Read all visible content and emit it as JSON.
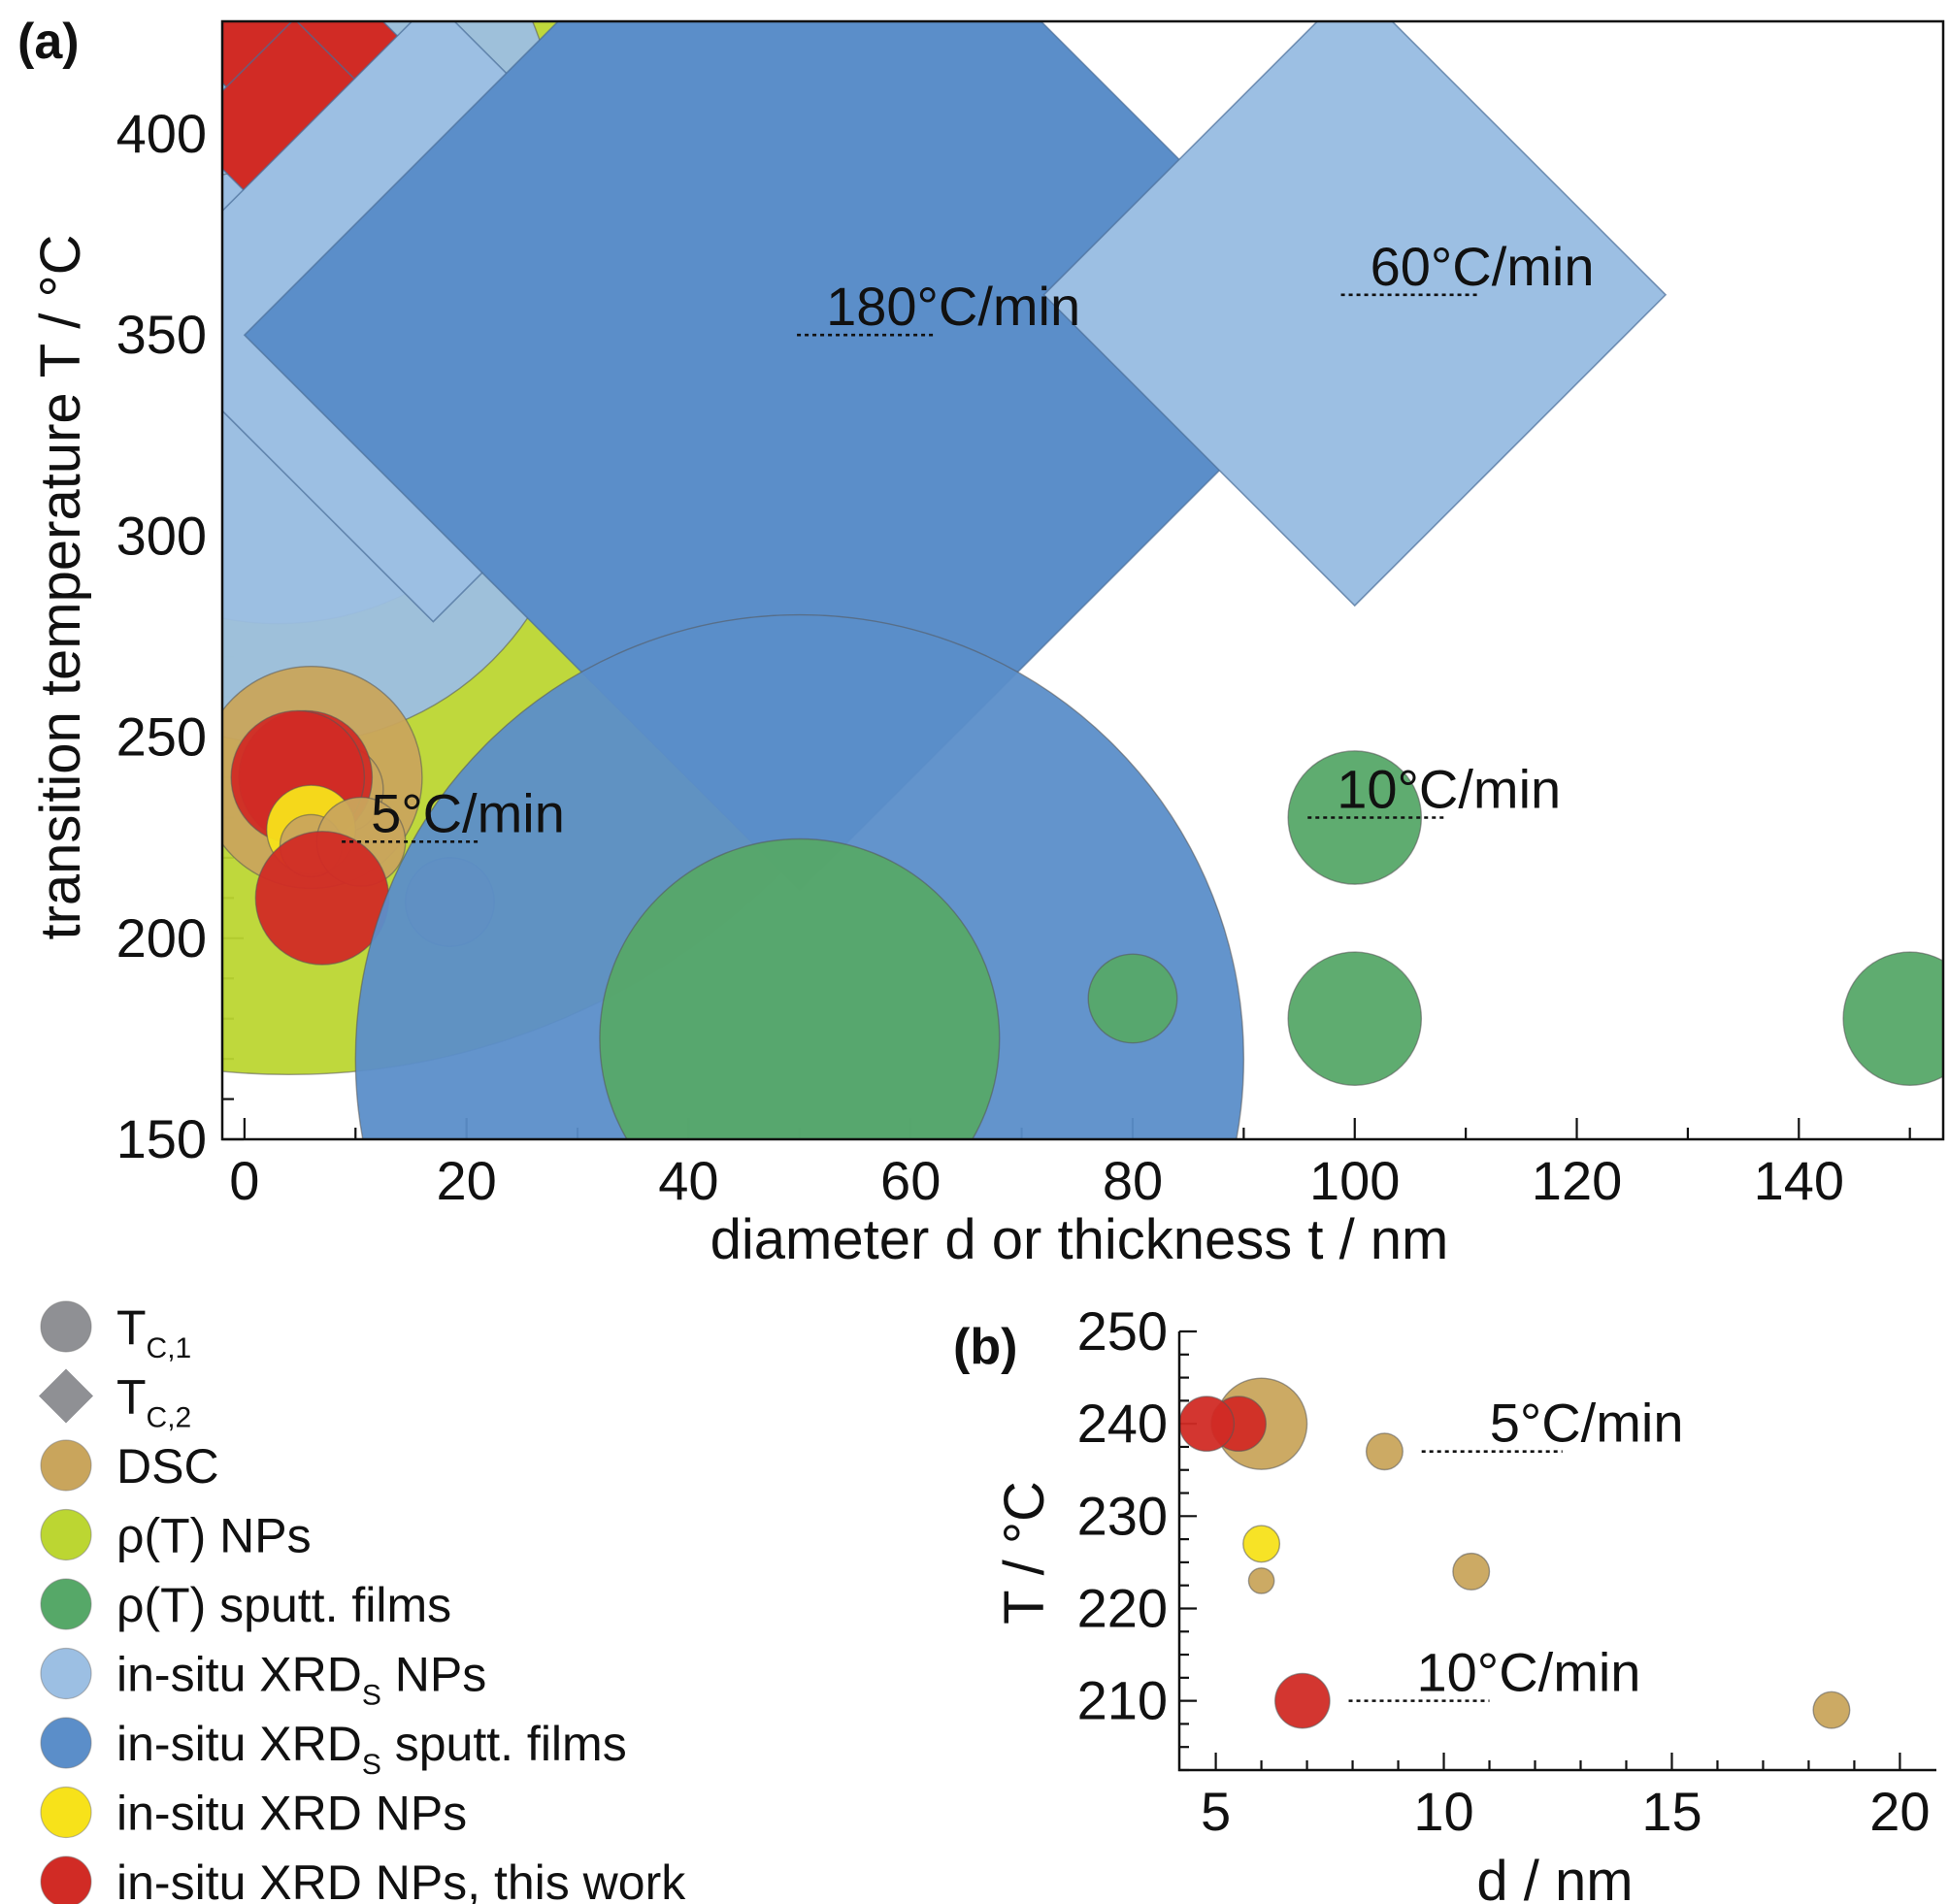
{
  "colors": {
    "DSC": "#c9a55c",
    "rho_NPs": "#bcd632",
    "rho_films": "#56a868",
    "xrds_NPs": "#9cbfe3",
    "xrds_films": "#5b8ec9",
    "xrd_NPs": "#f7e21a",
    "this_work": "#d12b25",
    "legend_shape": "#8f9094"
  },
  "legend": {
    "items": [
      {
        "key": "tc1",
        "shape": "circle",
        "color_key": "legend_shape",
        "main": "T",
        "sub": "C,1",
        "rest": ""
      },
      {
        "key": "tc2",
        "shape": "diamond",
        "color_key": "legend_shape",
        "main": "T",
        "sub": "C,2",
        "rest": ""
      },
      {
        "key": "dsc",
        "shape": "circle",
        "color_key": "DSC",
        "main": "DSC",
        "sub": "",
        "rest": ""
      },
      {
        "key": "rho-nps",
        "shape": "circle",
        "color_key": "rho_NPs",
        "main": "ρ(T) NPs",
        "sub": "",
        "rest": ""
      },
      {
        "key": "rho-films",
        "shape": "circle",
        "color_key": "rho_films",
        "main": "ρ(T) sputt. films",
        "sub": "",
        "rest": ""
      },
      {
        "key": "xrds-nps",
        "shape": "circle",
        "color_key": "xrds_NPs",
        "main": "in-situ XRD",
        "sub": "S",
        "rest": " NPs"
      },
      {
        "key": "xrds-films",
        "shape": "circle",
        "color_key": "xrds_films",
        "main": "in-situ XRD",
        "sub": "S",
        "rest": " sputt. films"
      },
      {
        "key": "xrd-nps",
        "shape": "circle",
        "color_key": "xrd_NPs",
        "main": "in-situ XRD NPs",
        "sub": "",
        "rest": ""
      },
      {
        "key": "this-work",
        "shape": "circle",
        "color_key": "this_work",
        "main": "in-situ XRD NPs, this work",
        "sub": "",
        "rest": ""
      }
    ]
  },
  "chart_data": [
    {
      "panel": "(a)",
      "type": "scatter",
      "xlabel": "diameter d or thickness t / nm",
      "ylabel": "transition temperature T / °C",
      "xlim": [
        -2,
        153
      ],
      "ylim": [
        150,
        428
      ],
      "xticks": [
        0,
        20,
        40,
        60,
        80,
        100,
        120,
        140
      ],
      "yticks": [
        150,
        200,
        250,
        300,
        350,
        400
      ],
      "annotations": [
        {
          "text": "180°C/min",
          "x": 62,
          "y": 350
        },
        {
          "text": "60°C/min",
          "x": 111,
          "y": 360
        },
        {
          "text": "5°C/min",
          "x": 21,
          "y": 224
        },
        {
          "text": "10°C/min",
          "x": 108,
          "y": 230
        }
      ],
      "points": [
        {
          "x": 4,
          "y": 340,
          "r": 63,
          "shape": "circle",
          "color_key": "rho_NPs"
        },
        {
          "x": 2,
          "y": 400,
          "r": 26,
          "shape": "circle",
          "color_key": "xrds_NPs"
        },
        {
          "x": 3,
          "y": 350,
          "r": 26,
          "shape": "circle",
          "color_key": "xrds_NPs"
        },
        {
          "x": 4,
          "y": 320,
          "r": 26,
          "shape": "circle",
          "color_key": "xrds_NPs"
        },
        {
          "x": 5,
          "y": 421,
          "r": 10,
          "shape": "diamond",
          "color_key": "this_work"
        },
        {
          "x": 4.5,
          "y": 401,
          "r": 10,
          "shape": "diamond",
          "color_key": "this_work"
        },
        {
          "x": 17,
          "y": 356,
          "r": 28,
          "shape": "diamond",
          "color_key": "xrds_NPs"
        },
        {
          "x": 50,
          "y": 350,
          "r": 50,
          "shape": "diamond",
          "color_key": "xrds_films"
        },
        {
          "x": 100,
          "y": 360,
          "r": 28,
          "shape": "diamond",
          "color_key": "xrds_NPs"
        },
        {
          "x": 6,
          "y": 240,
          "r": 10,
          "shape": "circle",
          "color_key": "DSC"
        },
        {
          "x": 8.5,
          "y": 237,
          "r": 4,
          "shape": "circle",
          "color_key": "DSC"
        },
        {
          "x": 5.5,
          "y": 240,
          "r": 6,
          "shape": "circle",
          "color_key": "this_work"
        },
        {
          "x": 4.8,
          "y": 240,
          "r": 6,
          "shape": "circle",
          "color_key": "this_work"
        },
        {
          "x": 6,
          "y": 227,
          "r": 4,
          "shape": "circle",
          "color_key": "xrd_NPs"
        },
        {
          "x": 6,
          "y": 223,
          "r": 2.8,
          "shape": "circle",
          "color_key": "DSC"
        },
        {
          "x": 10.5,
          "y": 224,
          "r": 4,
          "shape": "circle",
          "color_key": "DSC"
        },
        {
          "x": 7,
          "y": 210,
          "r": 6,
          "shape": "circle",
          "color_key": "this_work"
        },
        {
          "x": 18.5,
          "y": 209,
          "r": 4,
          "shape": "circle",
          "color_key": "DSC"
        },
        {
          "x": 50,
          "y": 170,
          "r": 40,
          "shape": "circle",
          "color_key": "xrds_films"
        },
        {
          "x": 50,
          "y": 175,
          "r": 18,
          "shape": "circle",
          "color_key": "rho_films"
        },
        {
          "x": 80,
          "y": 185,
          "r": 4,
          "shape": "circle",
          "color_key": "rho_films"
        },
        {
          "x": 100,
          "y": 180,
          "r": 6,
          "shape": "circle",
          "color_key": "rho_films"
        },
        {
          "x": 150,
          "y": 180,
          "r": 6,
          "shape": "circle",
          "color_key": "rho_films"
        },
        {
          "x": 100,
          "y": 230,
          "r": 6,
          "shape": "circle",
          "color_key": "rho_films"
        }
      ]
    },
    {
      "panel": "(b)",
      "type": "scatter",
      "xlabel": "d / nm",
      "ylabel": "T / °C",
      "xlim": [
        4.2,
        20.8
      ],
      "ylim": [
        202.5,
        250
      ],
      "xticks": [
        5,
        10,
        15,
        20
      ],
      "yticks": [
        210,
        220,
        230,
        240,
        250
      ],
      "annotations": [
        {
          "text": "5°C/min",
          "x": 12.6,
          "y": 237
        },
        {
          "text": "10°C/min",
          "x": 11,
          "y": 210
        }
      ],
      "points": [
        {
          "x": 6,
          "y": 240,
          "r": 10,
          "shape": "circle",
          "color_key": "DSC"
        },
        {
          "x": 5.5,
          "y": 240,
          "r": 6,
          "shape": "circle",
          "color_key": "this_work"
        },
        {
          "x": 4.8,
          "y": 240,
          "r": 6,
          "shape": "circle",
          "color_key": "this_work"
        },
        {
          "x": 8.7,
          "y": 237,
          "r": 4,
          "shape": "circle",
          "color_key": "DSC"
        },
        {
          "x": 6,
          "y": 227,
          "r": 4,
          "shape": "circle",
          "color_key": "xrd_NPs"
        },
        {
          "x": 6,
          "y": 223,
          "r": 2.8,
          "shape": "circle",
          "color_key": "DSC"
        },
        {
          "x": 10.6,
          "y": 224,
          "r": 4,
          "shape": "circle",
          "color_key": "DSC"
        },
        {
          "x": 6.9,
          "y": 210,
          "r": 6,
          "shape": "circle",
          "color_key": "this_work"
        },
        {
          "x": 18.5,
          "y": 209,
          "r": 4,
          "shape": "circle",
          "color_key": "DSC"
        }
      ]
    }
  ]
}
